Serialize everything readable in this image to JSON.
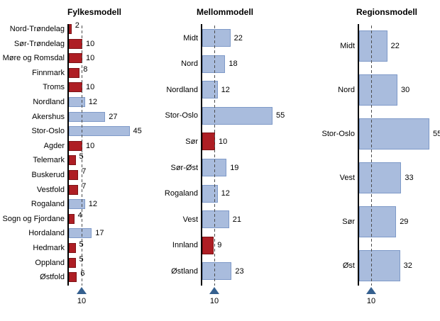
{
  "colors": {
    "red_fill": "#ae1e24",
    "red_border": "#7d1317",
    "blue_fill": "#a9bcdd",
    "blue_border": "#7f9ac8",
    "marker": "#35608f",
    "dash": "#4d4d4d",
    "axis": "#000000",
    "background": "#ffffff"
  },
  "chart_data": [
    {
      "type": "bar",
      "orientation": "horizontal",
      "title": "Fylkesmodell",
      "xlim": [
        0,
        50
      ],
      "grid": false,
      "reference_line": {
        "value": 10,
        "label": "10",
        "marker": "triangle-up"
      },
      "bars": [
        {
          "label": "Nord-Trøndelag",
          "value": 2,
          "color": "red"
        },
        {
          "label": "Sør-Trøndelag",
          "value": 10,
          "color": "red"
        },
        {
          "label": "Møre og Romsdal",
          "value": 10,
          "color": "red"
        },
        {
          "label": "Finnmark",
          "value": 8,
          "color": "red"
        },
        {
          "label": "Troms",
          "value": 10,
          "color": "red"
        },
        {
          "label": "Nordland",
          "value": 12,
          "color": "blue"
        },
        {
          "label": "Akershus",
          "value": 27,
          "color": "blue"
        },
        {
          "label": "Stor-Oslo",
          "value": 45,
          "color": "blue"
        },
        {
          "label": "Agder",
          "value": 10,
          "color": "red"
        },
        {
          "label": "Telemark",
          "value": 5,
          "color": "red"
        },
        {
          "label": "Buskerud",
          "value": 7,
          "color": "red"
        },
        {
          "label": "Vestfold",
          "value": 7,
          "color": "red"
        },
        {
          "label": "Rogaland",
          "value": 12,
          "color": "blue"
        },
        {
          "label": "Sogn og Fjordane",
          "value": 4,
          "color": "red"
        },
        {
          "label": "Hordaland",
          "value": 17,
          "color": "blue"
        },
        {
          "label": "Hedmark",
          "value": 5,
          "color": "red"
        },
        {
          "label": "Oppland",
          "value": 5,
          "color": "red"
        },
        {
          "label": "Østfold",
          "value": 6,
          "color": "red"
        }
      ]
    },
    {
      "type": "bar",
      "orientation": "horizontal",
      "title": "Mellommodell",
      "xlim": [
        0,
        60
      ],
      "grid": false,
      "reference_line": {
        "value": 10,
        "label": "10",
        "marker": "triangle-up"
      },
      "bars": [
        {
          "label": "Midt",
          "value": 22,
          "color": "blue"
        },
        {
          "label": "Nord",
          "value": 18,
          "color": "blue"
        },
        {
          "label": "Nordland",
          "value": 12,
          "color": "blue"
        },
        {
          "label": "Stor-Oslo",
          "value": 55,
          "color": "blue"
        },
        {
          "label": "Sør",
          "value": 10,
          "color": "red"
        },
        {
          "label": "Sør-Øst",
          "value": 19,
          "color": "blue"
        },
        {
          "label": "Rogaland",
          "value": 12,
          "color": "blue"
        },
        {
          "label": "Vest",
          "value": 21,
          "color": "blue"
        },
        {
          "label": "Innland",
          "value": 9,
          "color": "red"
        },
        {
          "label": "Østland",
          "value": 23,
          "color": "blue"
        }
      ]
    },
    {
      "type": "bar",
      "orientation": "horizontal",
      "title": "Regionsmodell",
      "xlim": [
        0,
        60
      ],
      "grid": false,
      "reference_line": {
        "value": 10,
        "label": "10",
        "marker": "triangle-up"
      },
      "bars": [
        {
          "label": "Midt",
          "value": 22,
          "color": "blue"
        },
        {
          "label": "Nord",
          "value": 30,
          "color": "blue"
        },
        {
          "label": "Stor-Oslo",
          "value": 55,
          "color": "blue"
        },
        {
          "label": "Vest",
          "value": 33,
          "color": "blue"
        },
        {
          "label": "Sør",
          "value": 29,
          "color": "blue"
        },
        {
          "label": "Øst",
          "value": 32,
          "color": "blue"
        }
      ]
    }
  ]
}
